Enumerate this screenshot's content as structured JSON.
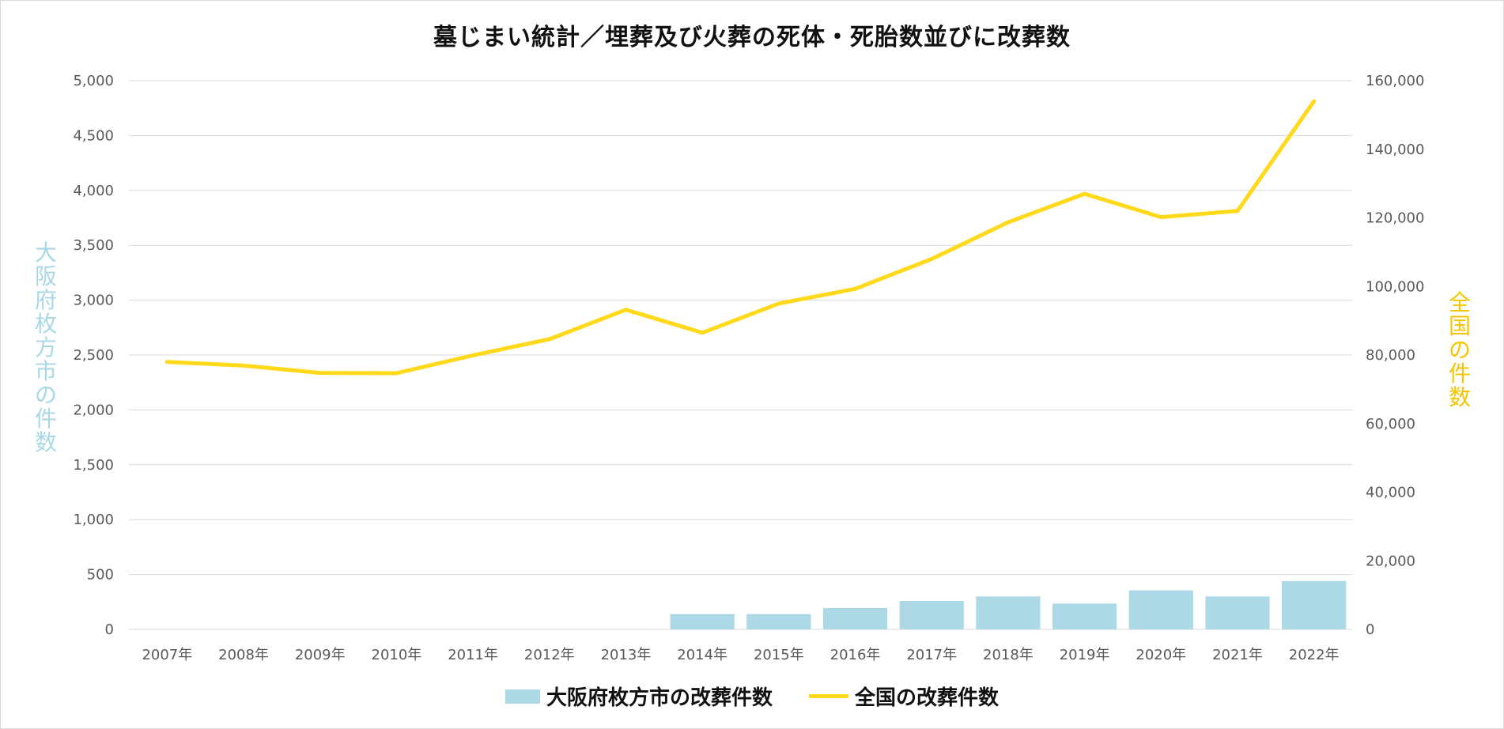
{
  "chart_data": {
    "type": "bar+line",
    "title": "墓じまい統計／埋葬及び火葬の死体・死胎数並びに改葬数",
    "categories": [
      "2007年",
      "2008年",
      "2009年",
      "2010年",
      "2011年",
      "2012年",
      "2013年",
      "2014年",
      "2015年",
      "2016年",
      "2017年",
      "2018年",
      "2019年",
      "2020年",
      "2021年",
      "2022年"
    ],
    "y_left": {
      "label": "大阪府枚方市の件数",
      "ylim": [
        0,
        5000
      ],
      "ticks": [
        "0",
        "500",
        "1,000",
        "1,500",
        "2,000",
        "2,500",
        "3,000",
        "3,500",
        "4,000",
        "4,500",
        "5,000"
      ],
      "color": "#a8d8e6"
    },
    "y_right": {
      "label": "全国の件数",
      "ylim": [
        0,
        160000
      ],
      "ticks": [
        "0",
        "20,000",
        "40,000",
        "60,000",
        "80,000",
        "100,000",
        "120,000",
        "140,000",
        "160,000"
      ],
      "color": "#f5c400"
    },
    "series": [
      {
        "name": "大阪府枚方市の改葬件数",
        "type": "bar",
        "axis": "left",
        "color": "#add8e6",
        "values": [
          null,
          null,
          null,
          null,
          null,
          null,
          null,
          140,
          140,
          195,
          260,
          300,
          235,
          355,
          300,
          440
        ]
      },
      {
        "name": "全国の改葬件数",
        "type": "line",
        "axis": "right",
        "color": "#ffd91a",
        "values": [
          78000,
          76900,
          74800,
          74700,
          79900,
          84600,
          93200,
          86500,
          95000,
          99300,
          108000,
          118700,
          127000,
          120200,
          122000,
          154000
        ]
      }
    ],
    "grid": true,
    "legend": "bottom"
  }
}
